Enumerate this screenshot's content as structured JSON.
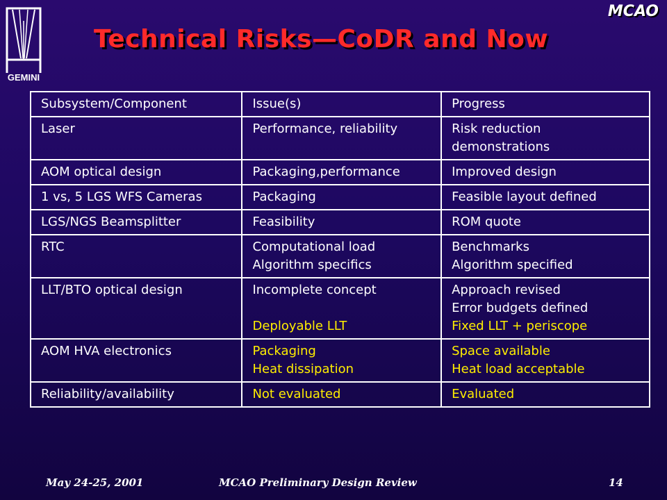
{
  "header": {
    "logo_text": "GEMINI",
    "brand": "MCAO",
    "title": "Technical Risks—CoDR and Now"
  },
  "table": {
    "headers": [
      "Subsystem/Component",
      "Issue(s)",
      "Progress"
    ],
    "rows": [
      {
        "subsystem": "Laser",
        "issues": [
          "Performance, reliability"
        ],
        "progress": [
          "Risk reduction demonstrations"
        ]
      },
      {
        "subsystem": "AOM optical design",
        "issues": [
          "Packaging,performance"
        ],
        "progress": [
          "Improved design"
        ]
      },
      {
        "subsystem": "1 vs, 5 LGS WFS Cameras",
        "issues": [
          "Packaging"
        ],
        "progress": [
          "Feasible layout defined"
        ]
      },
      {
        "subsystem": "LGS/NGS Beamsplitter",
        "issues": [
          "Feasibility"
        ],
        "progress": [
          "ROM quote"
        ]
      },
      {
        "subsystem": "RTC",
        "issues": [
          "Computational load",
          "Algorithm specifics"
        ],
        "progress": [
          "Benchmarks",
          "Algorithm specified"
        ]
      },
      {
        "subsystem": "LLT/BTO optical design",
        "issues": [
          "Incomplete concept",
          "Deployable LLT"
        ],
        "progress": [
          "Approach revised",
          "Error budgets defined",
          "Fixed LLT + periscope"
        ]
      },
      {
        "subsystem": "AOM HVA electronics",
        "issues": [
          "Packaging",
          "Heat dissipation"
        ],
        "progress": [
          "Space available",
          "Heat load acceptable"
        ]
      },
      {
        "subsystem": "Reliability/availability",
        "issues": [
          "Not evaluated"
        ],
        "progress": [
          "Evaluated"
        ]
      }
    ]
  },
  "footer": {
    "date": "May 24-25, 2001",
    "center": "MCAO Preliminary Design Review",
    "page": "14"
  },
  "colors": {
    "background": "#1d0860",
    "title": "#ff2a2a",
    "highlight": "#ffee00",
    "text": "#ffffff"
  }
}
